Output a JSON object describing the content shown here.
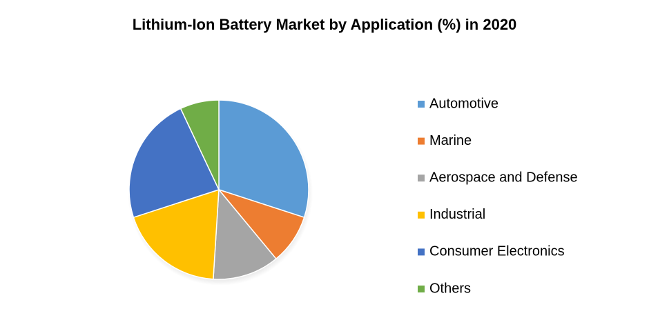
{
  "chart_data": {
    "type": "pie",
    "title": "Lithium-Ion Battery Market by Application (%) in 2020",
    "categories": [
      "Automotive",
      "Marine",
      "Aerospace and Defense",
      "Industrial",
      "Consumer Electronics",
      "Others"
    ],
    "values": [
      30,
      9,
      12,
      19,
      23,
      7
    ],
    "colors": [
      "#5b9bd5",
      "#ed7d31",
      "#a5a5a5",
      "#ffc000",
      "#4472c4",
      "#70ad47"
    ],
    "legend": "right"
  }
}
